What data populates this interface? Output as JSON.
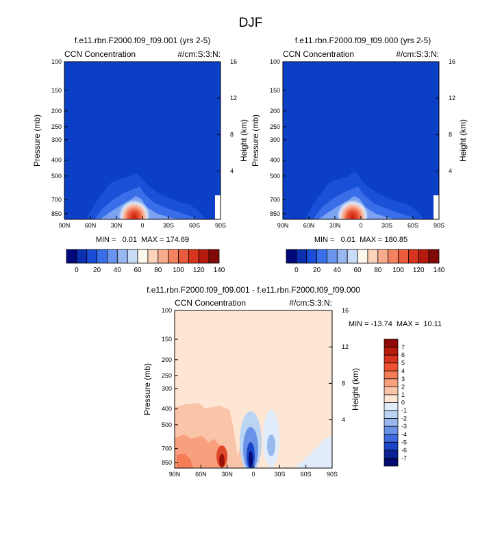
{
  "page_title": "DJF",
  "colors": {
    "background_panel": "#0a3fc6",
    "diff_background": "#fde4d0"
  },
  "chart_data": [
    {
      "type": "heatmap",
      "id": "panel1",
      "title": "f.e11.rbn.F2000.f09_f09.001 (yrs 2-5)",
      "left_label": "CCN Concentration",
      "right_label": "#/cm:S:3:N:",
      "ylabel": "Pressure (mb)",
      "ylabel_right": "Height (km)",
      "xlabel_ticks": [
        "90N",
        "60N",
        "30N",
        "0",
        "30S",
        "60S",
        "90S"
      ],
      "ylabel_ticks": [
        "100",
        "150",
        "200",
        "250",
        "300",
        "400",
        "500",
        "700",
        "850"
      ],
      "height_ticks": [
        "4",
        "8",
        "12",
        "16"
      ],
      "stats": "MIN =   0.01  MAX = 174.69",
      "colorbar": {
        "labels": [
          "0",
          "20",
          "40",
          "60",
          "80",
          "100",
          "120",
          "140"
        ],
        "colors": [
          "#00087a",
          "#0a2fb0",
          "#1a4cd6",
          "#3a6ee8",
          "#6a95ee",
          "#98b8f2",
          "#c8dcf8",
          "#fff8ec",
          "#fcd4bc",
          "#f8ac8e",
          "#f38260",
          "#ea5a3c",
          "#d8351e",
          "#b41a0e",
          "#800a06"
        ]
      },
      "ylim": [
        1000,
        100
      ],
      "xlim": [
        "90N",
        "90S"
      ]
    },
    {
      "type": "heatmap",
      "id": "panel2",
      "title": "f.e11.rbn.F2000.f09_f09.000 (yrs 2-5)",
      "left_label": "CCN Concentration",
      "right_label": "#/cm:S:3:N:",
      "ylabel": "Pressure (mb)",
      "ylabel_right": "Height (km)",
      "xlabel_ticks": [
        "90N",
        "60N",
        "30N",
        "0",
        "30S",
        "60S",
        "90S"
      ],
      "ylabel_ticks": [
        "100",
        "150",
        "200",
        "250",
        "300",
        "400",
        "500",
        "700",
        "850"
      ],
      "height_ticks": [
        "4",
        "8",
        "12",
        "16"
      ],
      "stats": "MIN =   0.01  MAX = 180.85",
      "colorbar": {
        "labels": [
          "0",
          "20",
          "40",
          "60",
          "80",
          "100",
          "120",
          "140"
        ],
        "colors": [
          "#00087a",
          "#0a2fb0",
          "#1a4cd6",
          "#3a6ee8",
          "#6a95ee",
          "#98b8f2",
          "#c8dcf8",
          "#fff8ec",
          "#fcd4bc",
          "#f8ac8e",
          "#f38260",
          "#ea5a3c",
          "#d8351e",
          "#b41a0e",
          "#800a06"
        ]
      },
      "ylim": [
        1000,
        100
      ],
      "xlim": [
        "90N",
        "90S"
      ]
    },
    {
      "type": "heatmap",
      "id": "diff",
      "title": "f.e11.rbn.F2000.f09_f09.001 - f.e11.rbn.F2000.f09_f09.000",
      "left_label": "CCN Concentration",
      "right_label": "#/cm:S:3:N:",
      "ylabel": "Pressure (mb)",
      "ylabel_right": "Height (km)",
      "xlabel_ticks": [
        "90N",
        "60N",
        "30N",
        "0",
        "30S",
        "60S",
        "90S"
      ],
      "ylabel_ticks": [
        "100",
        "150",
        "200",
        "250",
        "300",
        "400",
        "500",
        "700",
        "850"
      ],
      "height_ticks": [
        "4",
        "8",
        "12",
        "16"
      ],
      "stats": "MIN = -13.74  MAX =  10.11",
      "colorbar": {
        "labels": [
          "7",
          "6",
          "5",
          "4",
          "3",
          "2",
          "1",
          "0",
          "-1",
          "-2",
          "-3",
          "-4",
          "-5",
          "-6",
          "-7"
        ],
        "colors": [
          "#8e0a06",
          "#b81a0c",
          "#d8321c",
          "#ee5230",
          "#f47c56",
          "#f8a07e",
          "#fac4a8",
          "#fde6d4",
          "#e0ecfa",
          "#bcd4f4",
          "#98b8ee",
          "#6a92e6",
          "#3c6cde",
          "#1a44c8",
          "#0a2296",
          "#020a6e"
        ]
      },
      "ylim": [
        1000,
        100
      ],
      "xlim": [
        "90N",
        "90S"
      ]
    }
  ]
}
